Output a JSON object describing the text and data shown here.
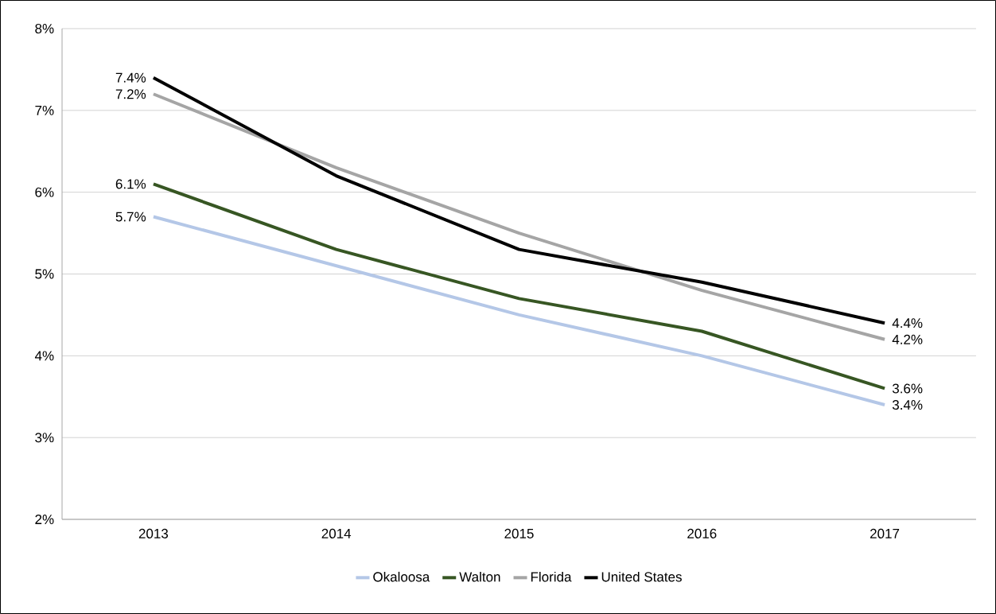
{
  "chart_data": {
    "type": "line",
    "categories": [
      "2013",
      "2014",
      "2015",
      "2016",
      "2017"
    ],
    "series": [
      {
        "name": "Okaloosa",
        "color": "#b4c7e7",
        "values": [
          5.7,
          5.1,
          4.5,
          4.0,
          3.4
        ],
        "value_labels": [
          "5.7%",
          null,
          null,
          null,
          "3.4%"
        ]
      },
      {
        "name": "Walton",
        "color": "#375623",
        "values": [
          6.1,
          5.3,
          4.7,
          4.3,
          3.6
        ],
        "value_labels": [
          "6.1%",
          null,
          null,
          null,
          "3.6%"
        ]
      },
      {
        "name": "Florida",
        "color": "#a5a5a5",
        "values": [
          7.2,
          6.3,
          5.5,
          4.8,
          4.2
        ],
        "value_labels": [
          "7.2%",
          null,
          null,
          null,
          "4.2%"
        ]
      },
      {
        "name": "United States",
        "color": "#000000",
        "values": [
          7.4,
          6.2,
          5.3,
          4.9,
          4.4
        ],
        "value_labels": [
          "7.4%",
          null,
          null,
          null,
          "4.4%"
        ]
      }
    ],
    "ylim": [
      2,
      8
    ],
    "yticks": [
      {
        "value": 2,
        "label": "2%"
      },
      {
        "value": 3,
        "label": "3%"
      },
      {
        "value": 4,
        "label": "4%"
      },
      {
        "value": 5,
        "label": "5%"
      },
      {
        "value": 6,
        "label": "6%"
      },
      {
        "value": 7,
        "label": "7%"
      },
      {
        "value": 8,
        "label": "8%"
      }
    ],
    "grid": "y",
    "legend": "bottom",
    "marker": "none",
    "line_style": "solid"
  }
}
